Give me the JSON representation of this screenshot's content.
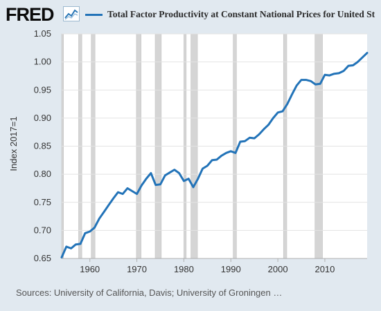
{
  "header": {
    "logo": "FRED",
    "legend_label": "Total Factor Productivity at Constant National Prices for United St"
  },
  "footer": {
    "source": "Sources: University of California, Davis; University of Groningen …"
  },
  "colors": {
    "series": "#2273b8",
    "background": "#e1e9f0",
    "plot_bg": "#ffffff",
    "recession": "#d5d5d5"
  },
  "chart_data": {
    "type": "line",
    "title": "",
    "xlabel": "",
    "ylabel": "Index 2017=1",
    "xlim": [
      1954,
      2019
    ],
    "ylim": [
      0.65,
      1.05
    ],
    "x_ticks": [
      1960,
      1970,
      1980,
      1990,
      2000,
      2010
    ],
    "x_tick_labels": [
      "1960",
      "1970",
      "1980",
      "1990",
      "2000",
      "2010"
    ],
    "y_ticks": [
      0.65,
      0.7,
      0.75,
      0.8,
      0.85,
      0.9,
      0.95,
      1.0,
      1.05
    ],
    "y_tick_labels": [
      "0.65",
      "0.70",
      "0.75",
      "0.80",
      "0.85",
      "0.90",
      "0.95",
      "1.00",
      "1.05"
    ],
    "grid": "horizontal",
    "recessions": [
      [
        1953.6,
        1954.4
      ],
      [
        1957.6,
        1958.3
      ],
      [
        1960.3,
        1961.1
      ],
      [
        1969.9,
        1970.9
      ],
      [
        1973.9,
        1975.2
      ],
      [
        1980.0,
        1980.5
      ],
      [
        1981.5,
        1982.9
      ],
      [
        1990.5,
        1991.2
      ],
      [
        2001.2,
        2001.9
      ],
      [
        2007.9,
        2009.5
      ]
    ],
    "series": [
      {
        "name": "Total Factor Productivity at Constant National Prices for United States",
        "x": [
          1954,
          1955,
          1956,
          1957,
          1958,
          1959,
          1960,
          1961,
          1962,
          1963,
          1964,
          1965,
          1966,
          1967,
          1968,
          1969,
          1970,
          1971,
          1972,
          1973,
          1974,
          1975,
          1976,
          1977,
          1978,
          1979,
          1980,
          1981,
          1982,
          1983,
          1984,
          1985,
          1986,
          1987,
          1988,
          1989,
          1990,
          1991,
          1992,
          1993,
          1994,
          1995,
          1996,
          1997,
          1998,
          1999,
          2000,
          2001,
          2002,
          2003,
          2004,
          2005,
          2006,
          2007,
          2008,
          2009,
          2010,
          2011,
          2012,
          2013,
          2014,
          2015,
          2016,
          2017,
          2018,
          2019
        ],
        "y": [
          0.652,
          0.671,
          0.668,
          0.675,
          0.676,
          0.695,
          0.698,
          0.705,
          0.721,
          0.733,
          0.745,
          0.757,
          0.768,
          0.765,
          0.775,
          0.77,
          0.765,
          0.78,
          0.792,
          0.802,
          0.781,
          0.782,
          0.798,
          0.803,
          0.808,
          0.802,
          0.788,
          0.792,
          0.777,
          0.792,
          0.81,
          0.815,
          0.825,
          0.826,
          0.833,
          0.838,
          0.841,
          0.838,
          0.858,
          0.859,
          0.865,
          0.864,
          0.871,
          0.88,
          0.888,
          0.9,
          0.91,
          0.912,
          0.925,
          0.942,
          0.958,
          0.968,
          0.968,
          0.966,
          0.96,
          0.961,
          0.977,
          0.976,
          0.979,
          0.98,
          0.984,
          0.993,
          0.994,
          1.0,
          1.008,
          1.016
        ]
      }
    ]
  }
}
